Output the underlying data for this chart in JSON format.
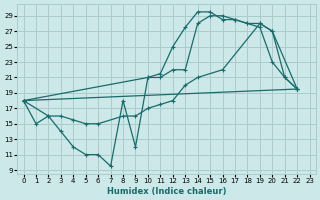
{
  "xlabel": "Humidex (Indice chaleur)",
  "bg_color": "#cce8e8",
  "grid_color": "#aacccc",
  "line_color": "#1a6b6b",
  "xlim": [
    -0.5,
    23.5
  ],
  "ylim": [
    8.5,
    30.5
  ],
  "xticks": [
    0,
    1,
    2,
    3,
    4,
    5,
    6,
    7,
    8,
    9,
    10,
    11,
    12,
    13,
    14,
    15,
    16,
    17,
    18,
    19,
    20,
    21,
    22,
    23
  ],
  "yticks": [
    9,
    11,
    13,
    15,
    17,
    19,
    21,
    23,
    25,
    27,
    29
  ],
  "line1_x": [
    0,
    1,
    2,
    3,
    4,
    5,
    6,
    7,
    8,
    9,
    10,
    11,
    12,
    13,
    14,
    15,
    16,
    17,
    18,
    19,
    20,
    21,
    22
  ],
  "line1_y": [
    18,
    15,
    16,
    14,
    12,
    11,
    11,
    9.5,
    18,
    12,
    21,
    21.5,
    25,
    27.5,
    29.5,
    29.5,
    28.5,
    28.5,
    28,
    27.5,
    23,
    21,
    19.5
  ],
  "line2_x": [
    0,
    10,
    11,
    12,
    13,
    14,
    15,
    16,
    17,
    18,
    19,
    20,
    21,
    22
  ],
  "line2_y": [
    18,
    21,
    21,
    22,
    22,
    28,
    29,
    29,
    28.5,
    28,
    28,
    27,
    21,
    19.5
  ],
  "line3_x": [
    0,
    2,
    3,
    4,
    5,
    6,
    8,
    9,
    10,
    11,
    12,
    13,
    14,
    16,
    19,
    20,
    22
  ],
  "line3_y": [
    18,
    16,
    16,
    15.5,
    15,
    15,
    16,
    16,
    17,
    17.5,
    18,
    20,
    21,
    22,
    28,
    27,
    19.5
  ],
  "line4_x": [
    0,
    22
  ],
  "line4_y": [
    18,
    19.5
  ]
}
